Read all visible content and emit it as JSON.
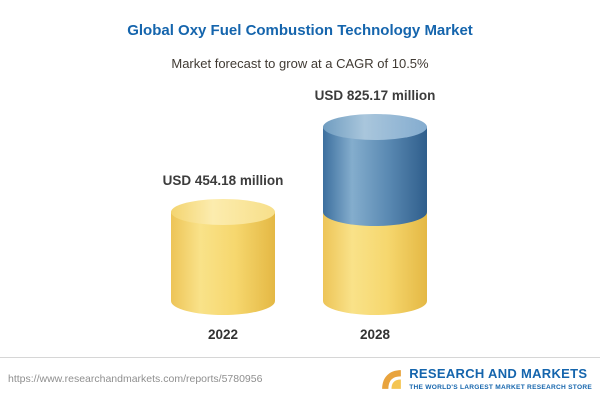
{
  "header": {
    "title": "Global Oxy Fuel Combustion Technology Market",
    "subtitle": "Market forecast to grow at a CAGR of 10.5%"
  },
  "chart_data": {
    "type": "bar",
    "subtype": "3d-cylinder",
    "categories": [
      "2022",
      "2028"
    ],
    "values": [
      454.18,
      825.17
    ],
    "value_labels": [
      "USD 454.18 million",
      "USD 825.17 million"
    ],
    "unit": "USD million",
    "cagr_percent": 10.5,
    "title": "Global Oxy Fuel Combustion Technology Market",
    "subtitle": "Market forecast to grow at a CAGR of 10.5%",
    "legend_position": "none",
    "grid": false,
    "axis_labels_visible": false,
    "colors": {
      "bar_yellow": "#f6d76e",
      "bar_blue": "#5b8ab3",
      "title_blue": "#1565ad",
      "label_dark": "#3c3c3c"
    },
    "notes": "2028 bar is stacked: yellow base equals 2022 value, blue top segment is growth to 825.17"
  },
  "footer": {
    "url": "https://www.researchandmarkets.com/reports/5780956",
    "logo_title": "RESEARCH AND MARKETS",
    "logo_tagline": "THE WORLD'S LARGEST MARKET RESEARCH STORE"
  }
}
